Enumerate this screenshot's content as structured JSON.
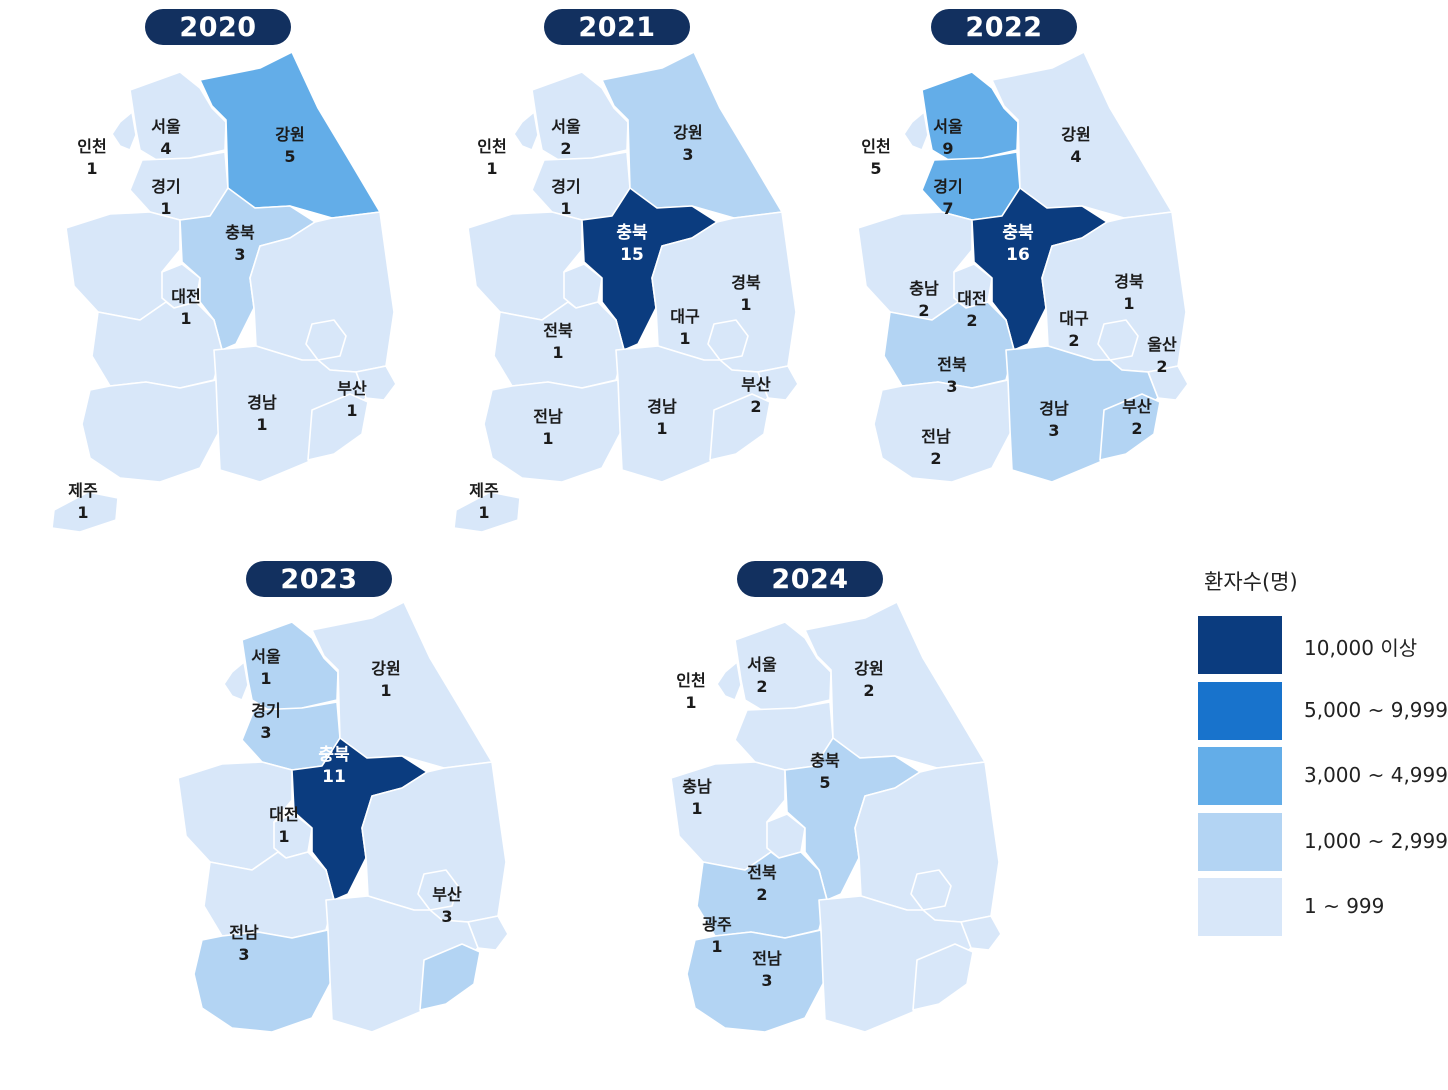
{
  "legend": {
    "title": "환자수(명)",
    "items": [
      {
        "label": "10,000 이상",
        "color": "#0b3c7f"
      },
      {
        "label": "5,000 ~ 9,999",
        "color": "#1873cc"
      },
      {
        "label": "3,000 ~ 4,999",
        "color": "#63ade8"
      },
      {
        "label": "1,000 ~ 2,999",
        "color": "#b3d4f3"
      },
      {
        "label": "1 ~ 999",
        "color": "#d8e7f9"
      }
    ]
  },
  "maps": [
    {
      "year": "2020",
      "regions": [
        {
          "name": "인천",
          "value": "1",
          "level": 4
        },
        {
          "name": "서울",
          "value": "4",
          "level": 4
        },
        {
          "name": "경기",
          "value": "1",
          "level": 4
        },
        {
          "name": "강원",
          "value": "5",
          "level": 2
        },
        {
          "name": "충북",
          "value": "3",
          "level": 3
        },
        {
          "name": "대전",
          "value": "1",
          "level": 4
        },
        {
          "name": "경남",
          "value": "1",
          "level": 4
        },
        {
          "name": "부산",
          "value": "1",
          "level": 4
        },
        {
          "name": "제주",
          "value": "1",
          "level": 4
        }
      ]
    },
    {
      "year": "2021",
      "regions": [
        {
          "name": "인천",
          "value": "1",
          "level": 4
        },
        {
          "name": "서울",
          "value": "2",
          "level": 4
        },
        {
          "name": "경기",
          "value": "1",
          "level": 4
        },
        {
          "name": "강원",
          "value": "3",
          "level": 3
        },
        {
          "name": "충북",
          "value": "15",
          "level": 0
        },
        {
          "name": "경북",
          "value": "1",
          "level": 4
        },
        {
          "name": "대구",
          "value": "1",
          "level": 4
        },
        {
          "name": "전북",
          "value": "1",
          "level": 4
        },
        {
          "name": "전남",
          "value": "1",
          "level": 4
        },
        {
          "name": "경남",
          "value": "1",
          "level": 4
        },
        {
          "name": "부산",
          "value": "2",
          "level": 4
        },
        {
          "name": "제주",
          "value": "1",
          "level": 4
        }
      ]
    },
    {
      "year": "2022",
      "regions": [
        {
          "name": "인천",
          "value": "5",
          "level": 4
        },
        {
          "name": "서울",
          "value": "9",
          "level": 2
        },
        {
          "name": "경기",
          "value": "7",
          "level": 2
        },
        {
          "name": "강원",
          "value": "4",
          "level": 4
        },
        {
          "name": "충북",
          "value": "16",
          "level": 0
        },
        {
          "name": "충남",
          "value": "2",
          "level": 4
        },
        {
          "name": "대전",
          "value": "2",
          "level": 4
        },
        {
          "name": "경북",
          "value": "1",
          "level": 4
        },
        {
          "name": "대구",
          "value": "2",
          "level": 4
        },
        {
          "name": "울산",
          "value": "2",
          "level": 4
        },
        {
          "name": "전북",
          "value": "3",
          "level": 3
        },
        {
          "name": "전남",
          "value": "2",
          "level": 4
        },
        {
          "name": "경남",
          "value": "3",
          "level": 3
        },
        {
          "name": "부산",
          "value": "2",
          "level": 3
        }
      ]
    },
    {
      "year": "2023",
      "regions": [
        {
          "name": "서울",
          "value": "1",
          "level": 3
        },
        {
          "name": "경기",
          "value": "3",
          "level": 3
        },
        {
          "name": "강원",
          "value": "1",
          "level": 4
        },
        {
          "name": "충북",
          "value": "11",
          "level": 0
        },
        {
          "name": "대전",
          "value": "1",
          "level": 4
        },
        {
          "name": "전남",
          "value": "3",
          "level": 3
        },
        {
          "name": "부산",
          "value": "3",
          "level": 3
        }
      ]
    },
    {
      "year": "2024",
      "regions": [
        {
          "name": "인천",
          "value": "1",
          "level": 4
        },
        {
          "name": "서울",
          "value": "2",
          "level": 4
        },
        {
          "name": "강원",
          "value": "2",
          "level": 4
        },
        {
          "name": "충북",
          "value": "5",
          "level": 3
        },
        {
          "name": "충남",
          "value": "1",
          "level": 4
        },
        {
          "name": "전북",
          "value": "2",
          "level": 3
        },
        {
          "name": "광주",
          "value": "1",
          "level": 3
        },
        {
          "name": "전남",
          "value": "3",
          "level": 3
        }
      ]
    }
  ]
}
